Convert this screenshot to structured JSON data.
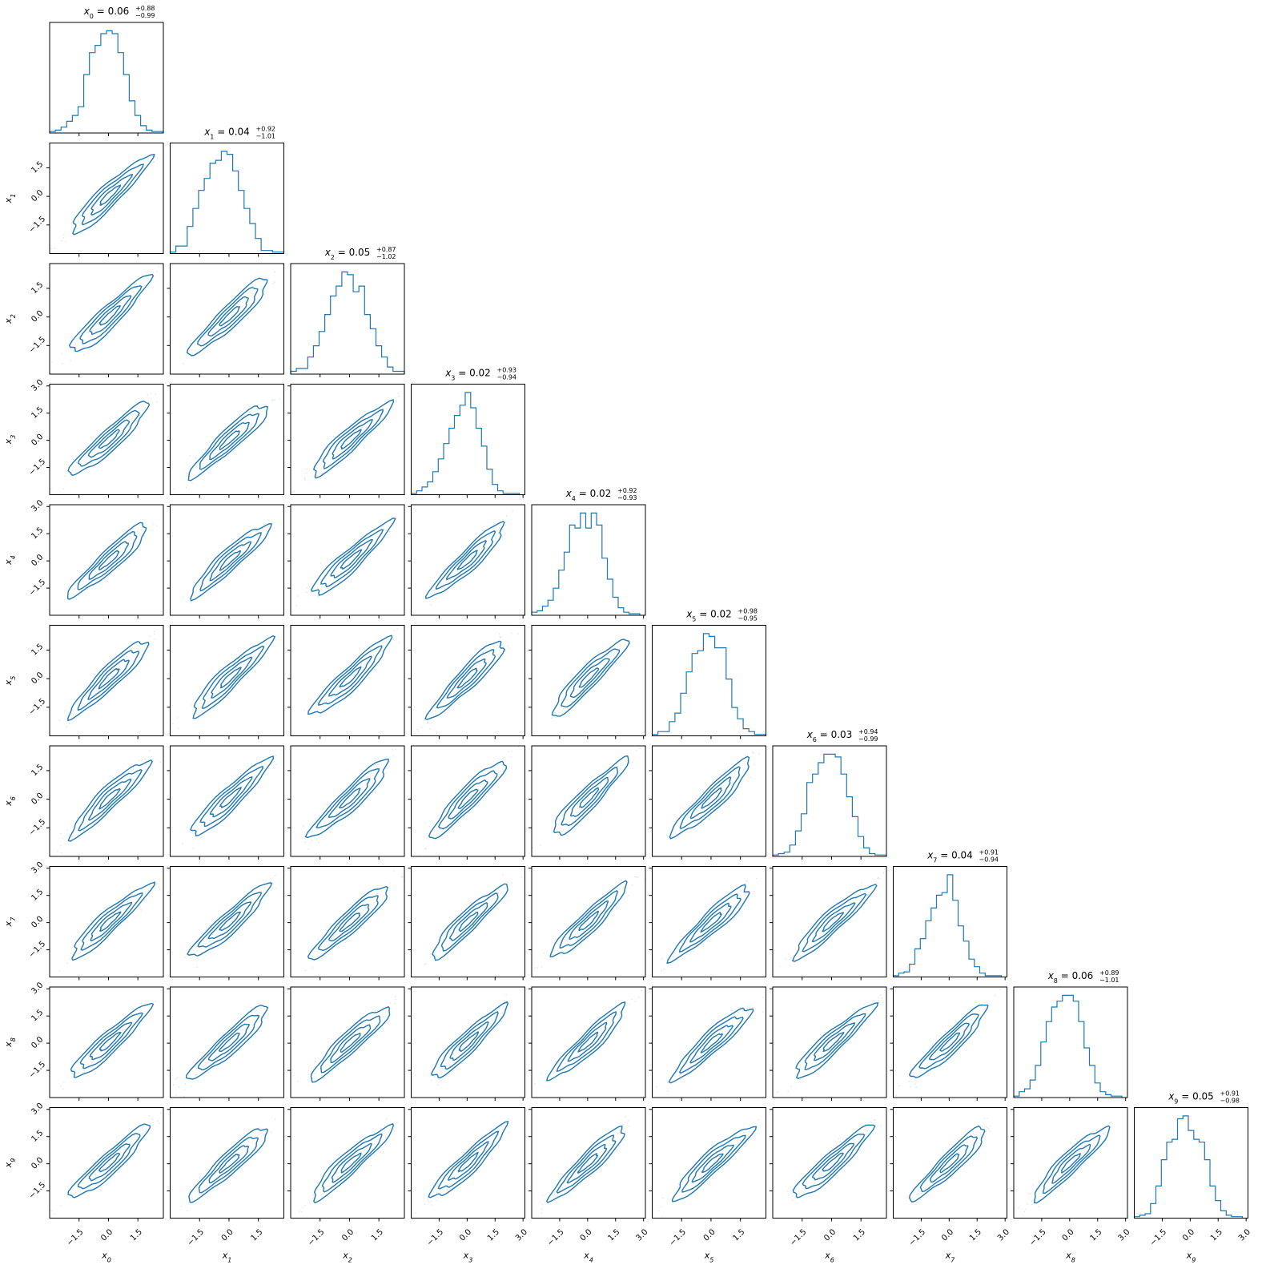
{
  "chart_data": {
    "type": "corner",
    "variables": [
      "x_0",
      "x_1",
      "x_2",
      "x_3",
      "x_4",
      "x_5",
      "x_6",
      "x_7",
      "x_8",
      "x_9"
    ],
    "axis_labels": [
      {
        "base": "x",
        "sub": "0"
      },
      {
        "base": "x",
        "sub": "1"
      },
      {
        "base": "x",
        "sub": "2"
      },
      {
        "base": "x",
        "sub": "3"
      },
      {
        "base": "x",
        "sub": "4"
      },
      {
        "base": "x",
        "sub": "5"
      },
      {
        "base": "x",
        "sub": "6"
      },
      {
        "base": "x",
        "sub": "7"
      },
      {
        "base": "x",
        "sub": "8"
      },
      {
        "base": "x",
        "sub": "9"
      }
    ],
    "titles": [
      {
        "var": "x",
        "sub": "0",
        "median": "0.06",
        "plus": "+0.88",
        "minus": "−0.99"
      },
      {
        "var": "x",
        "sub": "1",
        "median": "0.04",
        "plus": "+0.92",
        "minus": "−1.01"
      },
      {
        "var": "x",
        "sub": "2",
        "median": "0.05",
        "plus": "+0.87",
        "minus": "−1.02"
      },
      {
        "var": "x",
        "sub": "3",
        "median": "0.02",
        "plus": "+0.93",
        "minus": "−0.94"
      },
      {
        "var": "x",
        "sub": "4",
        "median": "0.02",
        "plus": "+0.92",
        "minus": "−0.93"
      },
      {
        "var": "x",
        "sub": "5",
        "median": "0.02",
        "plus": "+0.98",
        "minus": "−0.95"
      },
      {
        "var": "x",
        "sub": "6",
        "median": "0.03",
        "plus": "+0.94",
        "minus": "−0.99"
      },
      {
        "var": "x",
        "sub": "7",
        "median": "0.04",
        "plus": "+0.91",
        "minus": "−0.94"
      },
      {
        "var": "x",
        "sub": "8",
        "median": "0.06",
        "plus": "+0.89",
        "minus": "−1.01"
      },
      {
        "var": "x",
        "sub": "9",
        "median": "0.05",
        "plus": "+0.91",
        "minus": "−0.98"
      }
    ],
    "ranges": [
      [
        -3.0,
        2.8
      ],
      [
        -3.0,
        2.8
      ],
      [
        -3.0,
        2.8
      ],
      [
        -3.0,
        3.1
      ],
      [
        -3.0,
        3.1
      ],
      [
        -3.0,
        2.8
      ],
      [
        -3.0,
        2.8
      ],
      [
        -3.0,
        3.1
      ],
      [
        -3.0,
        3.1
      ],
      [
        -3.0,
        3.1
      ]
    ],
    "tick_values": [
      [
        -1.5,
        0.0,
        1.5
      ],
      [
        -1.5,
        0.0,
        1.5
      ],
      [
        -1.5,
        0.0,
        1.5
      ],
      [
        -1.5,
        0.0,
        1.5,
        3.0
      ],
      [
        -1.5,
        0.0,
        1.5,
        3.0
      ],
      [
        -1.5,
        0.0,
        1.5
      ],
      [
        -1.5,
        0.0,
        1.5
      ],
      [
        -1.5,
        0.0,
        1.5,
        3.0
      ],
      [
        -1.5,
        0.0,
        1.5,
        3.0
      ],
      [
        -1.5,
        0.0,
        1.5,
        3.0
      ]
    ],
    "tick_labels": [
      [
        "−1.5",
        "0.0",
        "1.5"
      ],
      [
        "−1.5",
        "0.0",
        "1.5"
      ],
      [
        "−1.5",
        "0.0",
        "1.5"
      ],
      [
        "−1.5",
        "0.0",
        "1.5",
        "3.0"
      ],
      [
        "−1.5",
        "0.0",
        "1.5",
        "3.0"
      ],
      [
        "−1.5",
        "0.0",
        "1.5"
      ],
      [
        "−1.5",
        "0.0",
        "1.5"
      ],
      [
        "−1.5",
        "0.0",
        "1.5",
        "3.0"
      ],
      [
        "−1.5",
        "0.0",
        "1.5",
        "3.0"
      ],
      [
        "−1.5",
        "0.0",
        "1.5",
        "3.0"
      ]
    ],
    "histogram_bin_edges": [
      -3.0,
      -2.71,
      -2.42,
      -2.13,
      -1.84,
      -1.55,
      -1.26,
      -0.97,
      -0.68,
      -0.39,
      -0.1,
      0.19,
      0.48,
      0.77,
      1.06,
      1.35,
      1.64,
      1.93,
      2.22,
      2.51,
      2.8
    ],
    "histograms": [
      [
        1,
        2,
        4,
        8,
        12,
        18,
        40,
        55,
        60,
        68,
        70,
        68,
        55,
        40,
        22,
        12,
        5,
        2,
        1,
        1
      ],
      [
        1,
        5,
        5,
        18,
        30,
        42,
        50,
        60,
        62,
        68,
        66,
        55,
        42,
        30,
        20,
        10,
        2,
        2,
        1,
        1
      ],
      [
        2,
        4,
        4,
        12,
        20,
        30,
        42,
        55,
        62,
        72,
        70,
        58,
        62,
        42,
        32,
        20,
        12,
        5,
        2,
        2
      ],
      [
        1,
        3,
        6,
        10,
        18,
        28,
        40,
        52,
        62,
        70,
        80,
        68,
        52,
        38,
        20,
        8,
        3,
        1,
        1,
        1
      ],
      [
        2,
        3,
        6,
        10,
        18,
        30,
        42,
        60,
        58,
        68,
        58,
        68,
        60,
        38,
        24,
        12,
        5,
        2,
        1,
        1
      ],
      [
        1,
        3,
        3,
        10,
        16,
        30,
        45,
        58,
        60,
        72,
        70,
        62,
        62,
        40,
        20,
        12,
        5,
        3,
        1,
        1
      ],
      [
        1,
        2,
        3,
        8,
        18,
        30,
        52,
        58,
        66,
        72,
        72,
        70,
        58,
        42,
        28,
        14,
        6,
        2,
        1,
        1
      ],
      [
        1,
        3,
        4,
        10,
        22,
        30,
        44,
        54,
        64,
        66,
        80,
        60,
        40,
        28,
        14,
        8,
        3,
        1,
        1,
        1
      ],
      [
        1,
        4,
        6,
        12,
        22,
        38,
        52,
        62,
        66,
        70,
        70,
        66,
        52,
        34,
        22,
        10,
        4,
        2,
        1,
        1
      ],
      [
        1,
        2,
        3,
        10,
        22,
        40,
        52,
        54,
        68,
        70,
        60,
        54,
        52,
        40,
        22,
        12,
        5,
        2,
        1,
        1
      ]
    ],
    "pair_correlation": 0.93,
    "contour_levels_sigma": [
      0.5,
      1.0,
      1.5,
      2.0
    ],
    "contour_fill_opacity": [
      0.12,
      0.24,
      0.38,
      0.6
    ],
    "colors": {
      "series": "#1f77b4",
      "frame": "#000000",
      "background": "#ffffff"
    }
  }
}
